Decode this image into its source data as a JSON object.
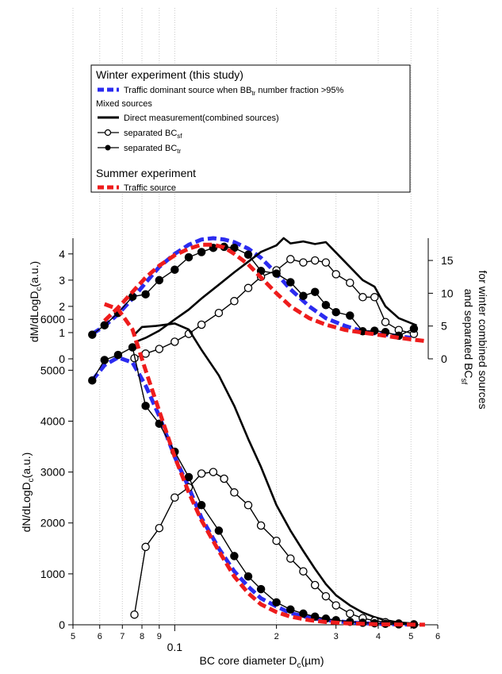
{
  "legend": {
    "winter_title": "Winter experiment (this study)",
    "traffic_dominant_label": "Traffic dominant source when BB",
    "traffic_dominant_sub": "tr",
    "traffic_dominant_suffix": " number fraction >95%",
    "mixed_title": "Mixed sources",
    "direct_label": "Direct measurement(combined sources)",
    "sep_sf_label": "separated BC",
    "sep_sf_sub": "sf",
    "sep_tr_label": "separated BC",
    "sep_tr_sub": "tr",
    "summer_title": "Summer experiment",
    "summer_traffic_label": "Traffic source"
  },
  "axes": {
    "x_label": "BC core diameter D",
    "x_label_sub": "c",
    "x_label_unit": "(µm)",
    "top_ylabel": "dM/dLogD",
    "top_ylabel_sub": "c",
    "top_ylabel_unit": "(a.u.)",
    "bottom_ylabel": "dN/dLogD",
    "bottom_ylabel_sub": "c",
    "bottom_ylabel_unit": "(a.u.)",
    "right_label_line1": "for winter combined sources",
    "right_label_line2": "and separated  BC",
    "right_label_line2_sub": "sf"
  },
  "colors": {
    "blue": "#2b2bf0",
    "red": "#ee1c1c",
    "black": "#000000",
    "grid": "#c8c8c8"
  },
  "chart_data": [
    {
      "type": "line",
      "panel": "top",
      "xscale": "log",
      "xlim": [
        0.05,
        0.6
      ],
      "ylim_left": [
        0,
        4.6
      ],
      "ylim_right": [
        0,
        18.4
      ],
      "x_ticks": [
        0.05,
        0.06,
        0.07,
        0.08,
        0.09,
        0.1,
        0.2,
        0.3,
        0.4,
        0.5,
        0.6
      ],
      "x_tick_labels": [
        "5",
        "6",
        "7",
        "8",
        "9",
        "0.1",
        "2",
        "3",
        "4",
        "5",
        "6"
      ],
      "y_ticks_left": [
        0,
        1,
        2,
        3,
        4
      ],
      "y_ticks_right": [
        0,
        5,
        10,
        15
      ],
      "grid": "vertical",
      "series": [
        {
          "name": "Traffic dominant source when BBtr number fraction >95%",
          "axis": "left",
          "style": "dashed-thick",
          "color": "blue",
          "x": [
            0.057,
            0.062,
            0.068,
            0.075,
            0.082,
            0.09,
            0.1,
            0.11,
            0.12,
            0.13,
            0.14,
            0.15,
            0.165,
            0.18,
            0.2,
            0.22,
            0.25,
            0.28,
            0.32,
            0.36,
            0.4,
            0.45,
            0.5
          ],
          "y": [
            0.95,
            1.25,
            1.7,
            2.3,
            2.9,
            3.5,
            4.0,
            4.35,
            4.55,
            4.6,
            4.55,
            4.45,
            4.2,
            3.85,
            3.25,
            2.65,
            2.0,
            1.55,
            1.25,
            1.05,
            0.95,
            0.88,
            0.8
          ]
        },
        {
          "name": "Direct measurement(combined sources)",
          "axis": "right",
          "style": "solid-thick",
          "color": "black",
          "x": [
            0.076,
            0.082,
            0.09,
            0.1,
            0.11,
            0.12,
            0.135,
            0.15,
            0.165,
            0.18,
            0.2,
            0.21,
            0.22,
            0.24,
            0.26,
            0.28,
            0.3,
            0.33,
            0.36,
            0.39,
            0.42,
            0.46,
            0.52
          ],
          "y": [
            2.5,
            3.2,
            4.3,
            6.0,
            7.5,
            9.2,
            11.3,
            13.2,
            14.8,
            16.3,
            17.3,
            18.4,
            17.6,
            17.9,
            17.5,
            17.8,
            16.2,
            14.0,
            12.0,
            11.0,
            8.0,
            6.2,
            5.1
          ]
        },
        {
          "name": "separated BCsf",
          "axis": "right",
          "style": "open-circle",
          "color": "black",
          "x": [
            0.076,
            0.082,
            0.09,
            0.1,
            0.11,
            0.12,
            0.135,
            0.15,
            0.165,
            0.18,
            0.2,
            0.22,
            0.24,
            0.26,
            0.28,
            0.3,
            0.33,
            0.36,
            0.39,
            0.42,
            0.46,
            0.51
          ],
          "y": [
            0.1,
            0.8,
            1.5,
            2.6,
            3.8,
            5.2,
            7.0,
            8.8,
            10.8,
            12.5,
            13.5,
            15.2,
            14.7,
            15.0,
            14.7,
            12.9,
            11.6,
            9.4,
            9.4,
            5.6,
            4.4,
            3.8
          ]
        },
        {
          "name": "separated BCtr",
          "axis": "left",
          "style": "filled-circle",
          "color": "black",
          "x": [
            0.057,
            0.062,
            0.068,
            0.075,
            0.082,
            0.09,
            0.1,
            0.11,
            0.12,
            0.13,
            0.14,
            0.15,
            0.165,
            0.18,
            0.2,
            0.22,
            0.24,
            0.26,
            0.28,
            0.3,
            0.33,
            0.36,
            0.39,
            0.42,
            0.46,
            0.51
          ],
          "y": [
            0.92,
            1.28,
            1.75,
            2.37,
            2.46,
            3.0,
            3.4,
            3.87,
            4.07,
            4.23,
            4.27,
            4.23,
            3.97,
            3.35,
            3.25,
            2.92,
            2.4,
            2.55,
            2.05,
            1.78,
            1.65,
            1.05,
            1.07,
            1.02,
            0.88,
            1.15
          ]
        },
        {
          "name": "Traffic source",
          "axis": "left",
          "style": "dashed-thick",
          "color": "red",
          "x": [
            0.062,
            0.068,
            0.075,
            0.082,
            0.09,
            0.1,
            0.11,
            0.12,
            0.13,
            0.14,
            0.15,
            0.165,
            0.18,
            0.2,
            0.22,
            0.25,
            0.28,
            0.32,
            0.36,
            0.4,
            0.45,
            0.5,
            0.55
          ],
          "y": [
            1.45,
            1.95,
            2.55,
            3.1,
            3.55,
            3.95,
            4.2,
            4.35,
            4.35,
            4.25,
            4.0,
            3.6,
            3.1,
            2.5,
            2.0,
            1.55,
            1.3,
            1.1,
            1.0,
            0.92,
            0.82,
            0.74,
            0.68
          ]
        }
      ]
    },
    {
      "type": "line",
      "panel": "bottom",
      "xscale": "log",
      "xlim": [
        0.05,
        0.6
      ],
      "ylim": [
        0,
        6300
      ],
      "x_ticks": [
        0.05,
        0.06,
        0.07,
        0.08,
        0.09,
        0.1,
        0.2,
        0.3,
        0.4,
        0.5,
        0.6
      ],
      "x_tick_labels": [
        "5",
        "6",
        "7",
        "8",
        "9",
        "0.1",
        "2",
        "3",
        "4",
        "5",
        "6"
      ],
      "y_ticks": [
        0,
        1000,
        2000,
        3000,
        4000,
        5000,
        6000
      ],
      "grid": "vertical",
      "series": [
        {
          "name": "Traffic dominant source when BBtr number fraction >95%",
          "style": "dashed-thick",
          "color": "blue",
          "x": [
            0.057,
            0.062,
            0.068,
            0.075,
            0.082,
            0.09,
            0.1,
            0.11,
            0.12,
            0.135,
            0.15,
            0.165,
            0.18,
            0.2,
            0.22,
            0.25,
            0.28,
            0.32,
            0.36,
            0.4,
            0.45,
            0.5
          ],
          "y": [
            4800,
            5100,
            5250,
            5150,
            4700,
            4100,
            3300,
            2700,
            2100,
            1500,
            1050,
            750,
            520,
            360,
            230,
            140,
            90,
            55,
            30,
            20,
            10,
            5
          ]
        },
        {
          "name": "Direct measurement(combined sources)",
          "style": "solid-thick",
          "color": "black",
          "x": [
            0.076,
            0.08,
            0.088,
            0.1,
            0.11,
            0.12,
            0.135,
            0.15,
            0.165,
            0.18,
            0.2,
            0.22,
            0.24,
            0.26,
            0.28,
            0.3,
            0.33,
            0.36,
            0.39,
            0.42,
            0.46,
            0.52
          ],
          "y": [
            5700,
            5850,
            5870,
            5920,
            5800,
            5400,
            4900,
            4300,
            3650,
            3100,
            2350,
            1850,
            1450,
            1100,
            800,
            580,
            380,
            240,
            150,
            90,
            45,
            20
          ]
        },
        {
          "name": "separated BCsf",
          "style": "open-circle",
          "color": "black",
          "x": [
            0.076,
            0.082,
            0.09,
            0.1,
            0.11,
            0.12,
            0.13,
            0.14,
            0.15,
            0.165,
            0.18,
            0.2,
            0.22,
            0.24,
            0.26,
            0.28,
            0.3,
            0.33,
            0.36,
            0.39,
            0.42,
            0.46,
            0.51
          ],
          "y": [
            200,
            1530,
            1900,
            2500,
            2700,
            2970,
            3000,
            2870,
            2600,
            2350,
            1950,
            1650,
            1300,
            1050,
            780,
            560,
            380,
            220,
            130,
            80,
            50,
            25,
            10
          ]
        },
        {
          "name": "separated BCtr",
          "style": "filled-circle",
          "color": "black",
          "x": [
            0.057,
            0.062,
            0.068,
            0.075,
            0.082,
            0.09,
            0.1,
            0.11,
            0.12,
            0.135,
            0.15,
            0.165,
            0.18,
            0.2,
            0.22,
            0.24,
            0.26,
            0.28,
            0.3,
            0.33,
            0.36,
            0.39,
            0.42,
            0.46,
            0.51
          ],
          "y": [
            4800,
            5200,
            5300,
            5450,
            4300,
            3950,
            3400,
            2900,
            2350,
            1850,
            1350,
            950,
            700,
            440,
            300,
            220,
            160,
            120,
            90,
            60,
            40,
            30,
            20,
            10,
            5
          ]
        },
        {
          "name": "Traffic source",
          "style": "dashed-thick",
          "color": "red",
          "x": [
            0.062,
            0.068,
            0.075,
            0.082,
            0.09,
            0.1,
            0.11,
            0.12,
            0.135,
            0.15,
            0.165,
            0.18,
            0.2,
            0.22,
            0.25,
            0.28,
            0.32,
            0.36,
            0.4,
            0.45,
            0.5,
            0.55
          ],
          "y": [
            6300,
            6200,
            5800,
            5000,
            4200,
            3300,
            2600,
            2050,
            1450,
            950,
            620,
            400,
            250,
            160,
            90,
            55,
            30,
            18,
            10,
            6,
            3,
            2
          ]
        }
      ]
    }
  ]
}
